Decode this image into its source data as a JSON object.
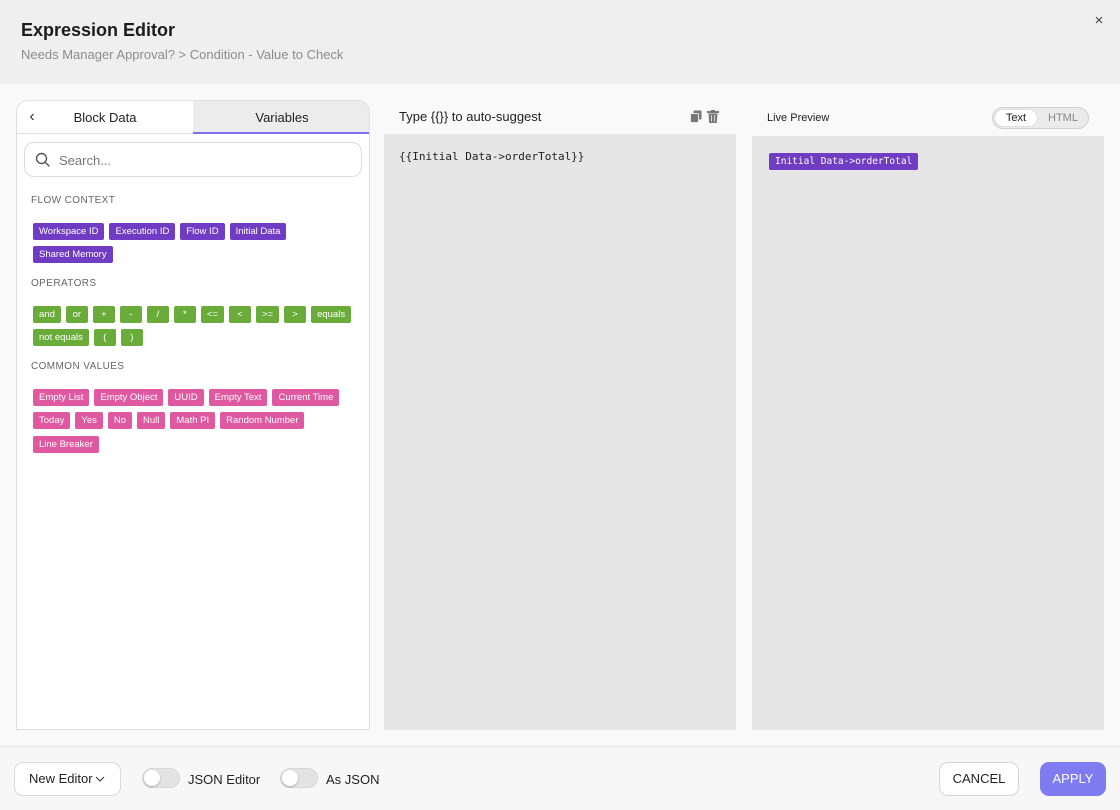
{
  "header": {
    "title": "Expression Editor",
    "breadcrumb": "Needs Manager Approval? > Condition - Value to Check",
    "close_icon": "×"
  },
  "left_panel": {
    "back_icon": "‹",
    "tabs": [
      {
        "label": "Block Data",
        "active": false
      },
      {
        "label": "Variables",
        "active": true
      }
    ],
    "search": {
      "placeholder": "Search...",
      "value": ""
    },
    "sections": {
      "flow_context": {
        "label": "FLOW CONTEXT",
        "row1": [
          "Workspace ID",
          "Execution ID",
          "Flow ID",
          "Initial Data"
        ],
        "row2": [
          "Shared Memory"
        ]
      },
      "operators": {
        "label": "OPERATORS",
        "row1": [
          "and",
          "or",
          "+",
          "-",
          "/",
          "*",
          "<=",
          "<",
          ">=",
          ">",
          "equals"
        ],
        "row2": [
          "not equals",
          "(",
          ")"
        ]
      },
      "common_values": {
        "label": "COMMON VALUES",
        "row1": [
          "Empty List",
          "Empty Object",
          "UUID",
          "Empty Text",
          "Current Time"
        ],
        "row2": [
          "Today",
          "Yes",
          "No",
          "Null",
          "Math PI",
          "Random Number"
        ],
        "row3": [
          "Line Breaker"
        ]
      }
    },
    "colors": {
      "flow_context": "#6f3cc3",
      "operators": "#6aac3a",
      "common_values": "#e0589f"
    }
  },
  "editor": {
    "label": "Type {{}} to auto-suggest",
    "content": "{{Initial Data->orderTotal}}"
  },
  "preview": {
    "label": "Live Preview",
    "toggle": {
      "options": [
        "Text",
        "HTML"
      ],
      "selected": "Text"
    },
    "chip": "Initial Data->orderTotal"
  },
  "footer": {
    "new_editor_label": "New Editor",
    "json_editor_label": "JSON Editor",
    "json_editor_on": false,
    "as_json_label": "As JSON",
    "as_json_on": false,
    "cancel_label": "CANCEL",
    "apply_label": "APPLY",
    "accent": "#7f7cf2"
  }
}
